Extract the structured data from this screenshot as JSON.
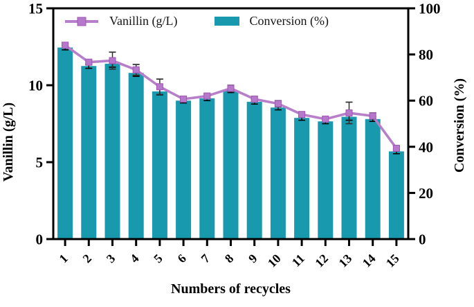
{
  "figure": {
    "background": "#ffffff",
    "axis_color": "#000000",
    "text_color": "#000000"
  },
  "legend": {
    "position": "top-inside",
    "items": [
      {
        "label": "Vanillin (g/L)",
        "type": "line-with-square-marker",
        "color": "#b77fc9",
        "marker_color": "#b678cb"
      },
      {
        "label": "Conversion (%)",
        "type": "filled-rectangle",
        "color": "#1899ae"
      }
    ]
  },
  "chart_data": {
    "type": "bar",
    "title": "",
    "xlabel": "Numbers of recycles",
    "ylabel_left": "Vanillin (g/L)",
    "ylabel_right": "Conversion (%)",
    "grid": false,
    "frame": "full-box",
    "categories": [
      "1",
      "2",
      "3",
      "4",
      "5",
      "6",
      "7",
      "8",
      "9",
      "10",
      "11",
      "12",
      "13",
      "14",
      "15"
    ],
    "left_axis": {
      "min": 0,
      "max": 15,
      "ticks": [
        0,
        5,
        10,
        15
      ]
    },
    "right_axis": {
      "min": 0,
      "max": 100,
      "ticks": [
        0,
        20,
        40,
        60,
        80,
        100
      ]
    },
    "series": [
      {
        "name": "Conversion (%)",
        "type": "bar",
        "axis": "right",
        "color": "#1899ae",
        "error_color": "#000000",
        "values": [
          83,
          75,
          76,
          72,
          64,
          60,
          61,
          64.5,
          59.5,
          57,
          52.5,
          51,
          53,
          52,
          38
        ],
        "errors": [
          1,
          1,
          1.5,
          1.5,
          1.5,
          1,
          1,
          1,
          1,
          1,
          1,
          1,
          1.5,
          1,
          1
        ]
      },
      {
        "name": "Vanillin (g/L)",
        "type": "line",
        "axis": "left",
        "marker": "square",
        "color": "#b77fc9",
        "marker_fill": "#b678cb",
        "marker_edge": "#9f56b4",
        "error_color": "#2f2f2f",
        "values": [
          12.6,
          11.5,
          11.6,
          11.0,
          9.9,
          9.1,
          9.3,
          9.8,
          9.1,
          8.8,
          8.1,
          7.8,
          8.2,
          8.0,
          5.9
        ],
        "errors": [
          0.15,
          0.15,
          0.55,
          0.35,
          0.5,
          0.12,
          0.15,
          0.2,
          0.15,
          0.2,
          0.12,
          0.12,
          0.7,
          0.2,
          0.15
        ]
      }
    ]
  }
}
